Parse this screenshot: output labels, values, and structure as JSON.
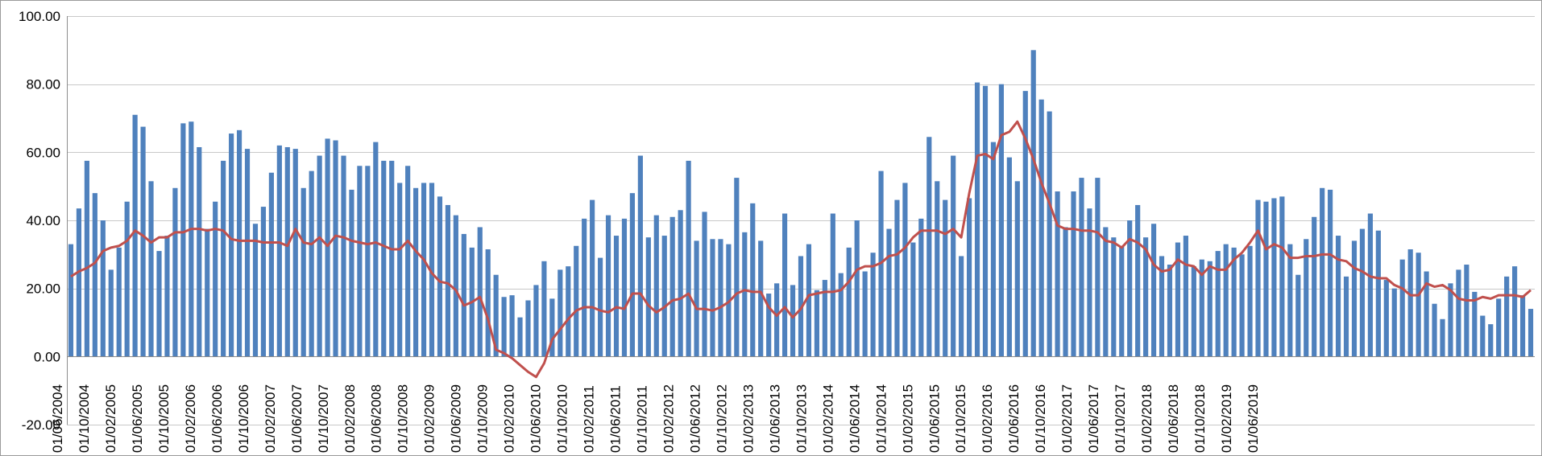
{
  "chart_data": {
    "type": "bar",
    "title": "",
    "xlabel": "",
    "ylabel": "",
    "ylim": [
      -20,
      100
    ],
    "yticks": [
      -20,
      0,
      20,
      40,
      60,
      80,
      100
    ],
    "ytick_labels": [
      "-20.00",
      "0.00",
      "20.00",
      "40.00",
      "60.00",
      "80.00",
      "100.00"
    ],
    "x_tick_labels": [
      "01/06/2004",
      "01/10/2004",
      "01/02/2005",
      "01/06/2005",
      "01/10/2005",
      "01/02/2006",
      "01/06/2006",
      "01/10/2006",
      "01/02/2007",
      "01/06/2007",
      "01/10/2007",
      "01/02/2008",
      "01/06/2008",
      "01/10/2008",
      "01/02/2009",
      "01/06/2009",
      "01/10/2009",
      "01/02/2010",
      "01/06/2010",
      "01/10/2010",
      "01/02/2011",
      "01/06/2011",
      "01/10/2011",
      "01/02/2012",
      "01/06/2012",
      "01/10/2012",
      "01/02/2013",
      "01/06/2013",
      "01/10/2013",
      "01/02/2014",
      "01/06/2014",
      "01/10/2014",
      "01/02/2015",
      "01/06/2015",
      "01/10/2015",
      "01/02/2016",
      "01/06/2016",
      "01/10/2016",
      "01/02/2017",
      "01/06/2017",
      "01/10/2017",
      "01/02/2018",
      "01/06/2018",
      "01/10/2018",
      "01/02/2019",
      "01/06/2019"
    ],
    "grid": true,
    "legend": "none",
    "colors": {
      "bars": "#4f81bd",
      "line": "#c0504d"
    },
    "series": [
      {
        "kind": "bar",
        "values": [
          33,
          43.5,
          57.5,
          48,
          40,
          25.5,
          32,
          45.5,
          71,
          67.5,
          51.5,
          31,
          35.5,
          49.5,
          68.5,
          69,
          61.5,
          37.5,
          45.5,
          57.5,
          65.5,
          66.5,
          61,
          39,
          44,
          54,
          62,
          61.5,
          61,
          49.5,
          54.5,
          59,
          64,
          63.5,
          59,
          49,
          56,
          56,
          63,
          57.5,
          57.5,
          51,
          56,
          49.5,
          51,
          51,
          47,
          44.5,
          41.5,
          36,
          32,
          38,
          31.5,
          24,
          17.5,
          18,
          11.5,
          16.5,
          21,
          28,
          17,
          25.5,
          26.5,
          32.5,
          40.5,
          46,
          29,
          41.5,
          35.5,
          40.5,
          48,
          59,
          35,
          41.5,
          35.5,
          41,
          43,
          57.5,
          34,
          42.5,
          34.5,
          34.5,
          33,
          52.5,
          36.5,
          45,
          34,
          18.5,
          21.5,
          42,
          21,
          29.5,
          33,
          19.5,
          22.5,
          42,
          24.5,
          32,
          40,
          25,
          30.5,
          54.5,
          37.5,
          46,
          51,
          33.5,
          40.5,
          64.5,
          51.5,
          46,
          59,
          29.5,
          46.5,
          80.5,
          79.5,
          63,
          80,
          58.5,
          51.5,
          78,
          90,
          75.5,
          72,
          48.5,
          38,
          48.5,
          52.5,
          43.5,
          52.5,
          38,
          35,
          32.5,
          40,
          44.5,
          35,
          39,
          29.5,
          27,
          33.5,
          35.5,
          26.5,
          28.5,
          28,
          31,
          33,
          32,
          30,
          32.5,
          46,
          45.5,
          46.5,
          47,
          33,
          24,
          34.5,
          41,
          49.5,
          49,
          35.5,
          23.5,
          34,
          37.5,
          42,
          37,
          22.5,
          20,
          28.5,
          31.5,
          30.5,
          25,
          15.5,
          11,
          21.5,
          25.5,
          27,
          19,
          12,
          9.5,
          17,
          23.5,
          26.5,
          18,
          14
        ]
      },
      {
        "kind": "line",
        "values": [
          23.5,
          25,
          26,
          27.5,
          31,
          32,
          32.5,
          34,
          37,
          35.5,
          33.5,
          35,
          35,
          36.5,
          36.5,
          37.5,
          37.5,
          37,
          37.5,
          37,
          34.5,
          34,
          34,
          34,
          33.5,
          33.5,
          33.5,
          32.5,
          37.5,
          33.5,
          33,
          35,
          32.5,
          35.5,
          35,
          34,
          33.5,
          33,
          33.5,
          32.5,
          31.5,
          31.5,
          34,
          31,
          28.5,
          24.5,
          22,
          21.5,
          19.5,
          15,
          16,
          17.5,
          11,
          2,
          1,
          -0.5,
          -2.5,
          -4.5,
          -6,
          -2,
          5,
          8,
          11,
          13.5,
          14.5,
          14.5,
          13.5,
          13,
          14.5,
          14,
          18.5,
          18.5,
          15,
          13,
          14.5,
          16.5,
          17,
          18.5,
          14,
          14,
          13.5,
          14.5,
          16,
          18.5,
          19.5,
          19,
          19,
          14.5,
          12,
          14.5,
          11.5,
          14,
          18,
          18.5,
          19,
          19,
          19.5,
          22,
          25.5,
          26.5,
          26.5,
          27.5,
          29.5,
          30,
          32,
          35,
          37,
          37,
          37,
          36,
          37.5,
          35,
          48,
          59,
          59.5,
          58,
          65,
          66,
          69,
          64,
          58,
          51,
          45,
          38.5,
          37.5,
          37.5,
          37,
          37,
          36.5,
          34,
          33.5,
          32,
          34.5,
          33.5,
          31.5,
          27,
          25,
          25.5,
          28.5,
          27,
          26.5,
          24,
          26.5,
          25.5,
          25.5,
          28.5,
          30.5,
          33.5,
          37,
          31.5,
          33,
          32,
          29,
          29,
          29.5,
          29.5,
          30,
          30,
          28.5,
          28,
          26,
          25,
          23.5,
          23,
          23,
          21,
          20,
          18,
          18,
          21.5,
          20.5,
          21,
          19.5,
          17,
          16.5,
          16.5,
          17.5,
          17,
          18,
          18,
          18,
          17.5,
          19.5
        ]
      }
    ]
  }
}
